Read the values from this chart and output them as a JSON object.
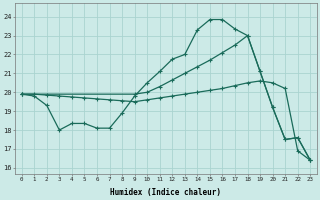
{
  "xlabel": "Humidex (Indice chaleur)",
  "bg_color": "#cceae7",
  "grid_color": "#aad4d0",
  "line_color": "#1a6b5a",
  "xlim": [
    -0.5,
    23.5
  ],
  "ylim": [
    15.7,
    24.7
  ],
  "yticks": [
    16,
    17,
    18,
    19,
    20,
    21,
    22,
    23,
    24
  ],
  "xticks": [
    0,
    1,
    2,
    3,
    4,
    5,
    6,
    7,
    8,
    9,
    10,
    11,
    12,
    13,
    14,
    15,
    16,
    17,
    18,
    19,
    20,
    21,
    22,
    23
  ],
  "series1_x": [
    0,
    1,
    2,
    3,
    4,
    5,
    6,
    7,
    8,
    9,
    10,
    11,
    12,
    13,
    14,
    15,
    16,
    17,
    18,
    19,
    20,
    21,
    22,
    23
  ],
  "series1_y": [
    19.9,
    19.8,
    19.3,
    18.0,
    18.35,
    18.35,
    18.1,
    18.1,
    18.9,
    19.8,
    20.5,
    21.1,
    21.75,
    22.0,
    23.3,
    23.85,
    23.85,
    23.35,
    23.0,
    21.1,
    19.2,
    17.5,
    17.6,
    16.4
  ],
  "series2_x": [
    0,
    1,
    2,
    3,
    4,
    5,
    6,
    7,
    8,
    9,
    10,
    11,
    12,
    13,
    14,
    15,
    16,
    17,
    18,
    19,
    20,
    21,
    22,
    23
  ],
  "series2_y": [
    19.9,
    19.9,
    19.85,
    19.8,
    19.75,
    19.7,
    19.65,
    19.6,
    19.55,
    19.5,
    19.6,
    19.7,
    19.8,
    19.9,
    20.0,
    20.1,
    20.2,
    20.35,
    20.5,
    20.6,
    20.5,
    20.2,
    16.9,
    16.4
  ],
  "series3_x": [
    0,
    9,
    10,
    11,
    12,
    13,
    14,
    15,
    16,
    17,
    18,
    19,
    20,
    21,
    22,
    23
  ],
  "series3_y": [
    19.9,
    19.9,
    20.0,
    20.3,
    20.65,
    21.0,
    21.35,
    21.7,
    22.1,
    22.5,
    23.0,
    21.1,
    19.2,
    17.5,
    17.6,
    16.4
  ]
}
